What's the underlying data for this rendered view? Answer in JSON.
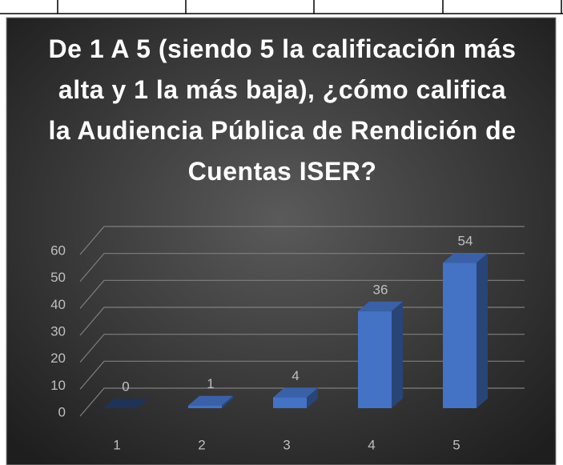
{
  "chart_data": {
    "type": "bar3d",
    "title": "De 1 A 5 (siendo 5 la calificación más alta y 1 la más baja), ¿cómo califica la Audiencia Pública de Rendición de Cuentas ISER?",
    "categories": [
      "1",
      "2",
      "3",
      "4",
      "5"
    ],
    "values": [
      0,
      1,
      4,
      36,
      54
    ],
    "color": "#4472c4",
    "ylim": [
      0,
      60
    ],
    "yticks": [
      0,
      10,
      20,
      30,
      40,
      50,
      60
    ],
    "grid": true
  }
}
